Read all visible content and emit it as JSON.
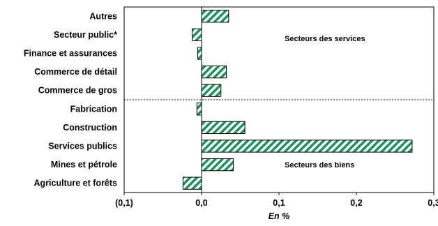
{
  "chart_data": {
    "type": "bar",
    "orientation": "horizontal",
    "categories": [
      "Autres",
      "Secteur public*",
      "Finance et assurances",
      "Commerce de détail",
      "Commerce de gros",
      "Fabrication",
      "Construction",
      "Services publics",
      "Mines et pétrole",
      "Agriculture et forêts"
    ],
    "values": [
      0.035,
      -0.012,
      -0.005,
      0.032,
      0.025,
      -0.006,
      0.056,
      0.272,
      0.041,
      -0.024
    ],
    "xlabel": "En %",
    "xlim": [
      -0.1,
      0.3
    ],
    "xticks": [
      -0.1,
      0.0,
      0.1,
      0.2,
      0.3
    ],
    "xtick_labels": [
      "(0,1)",
      "0,0",
      "0,1",
      "0,2",
      "0,3"
    ],
    "annotations": [
      "Secteurs des services",
      "Secteurs des biens"
    ],
    "divider": "dotted line between Commerce de gros and Fabrication",
    "bar_fill": "green diagonal hatch",
    "grid": false,
    "colors": {
      "hatch": "#1e8f5e",
      "outline": "#000000"
    }
  }
}
